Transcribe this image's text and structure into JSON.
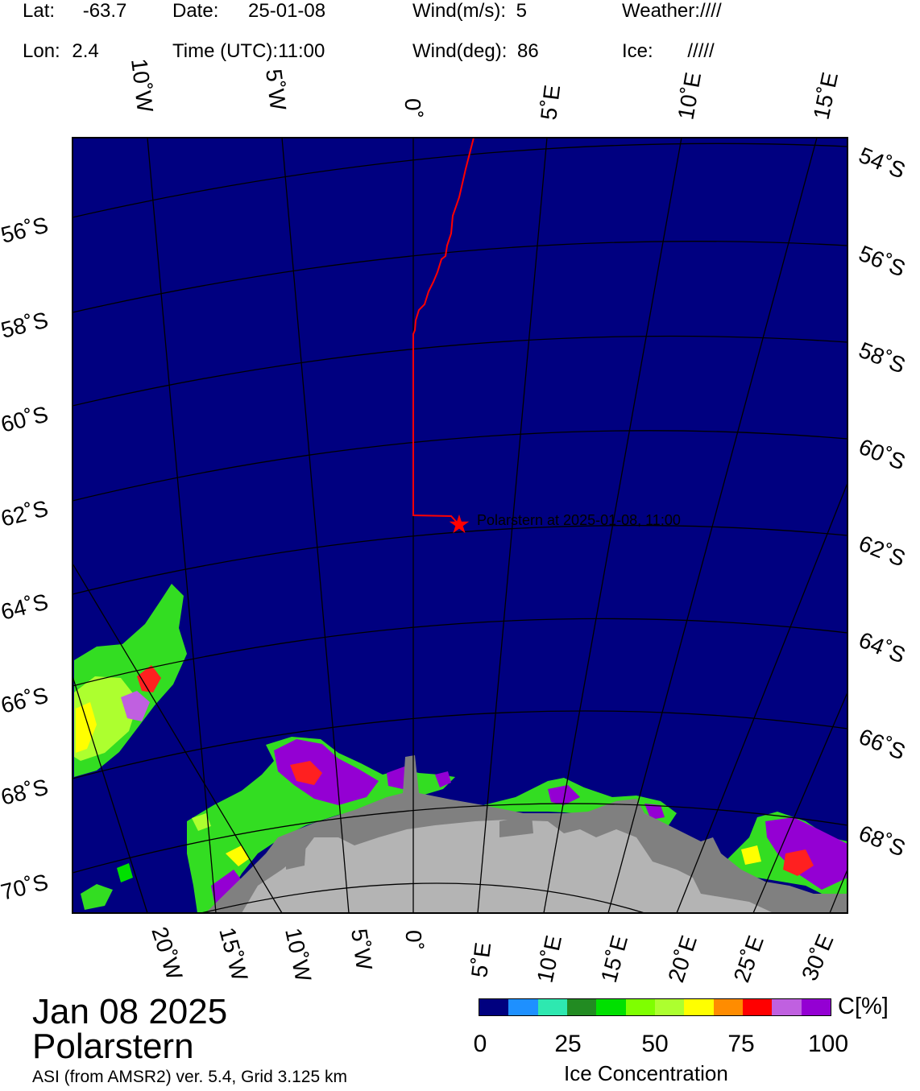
{
  "header": {
    "lat_label": "Lat:",
    "lat_value": "-63.7",
    "lon_label": "Lon:",
    "lon_value": "2.4",
    "date_label": "Date:",
    "date_value": "25-01-08",
    "time_label": "Time (UTC):",
    "time_value": "11:00",
    "wind_speed_label": "Wind(m/s):",
    "wind_speed_value": "5",
    "wind_dir_label": "Wind(deg):",
    "wind_dir_value": "86",
    "weather_label": "Weather:",
    "weather_value": "////",
    "ice_label": "Ice:",
    "ice_value": "/////"
  },
  "map": {
    "top_lon_labels": [
      "10˚W",
      "5˚W",
      "0˚",
      "5˚E",
      "10˚E",
      "15˚E"
    ],
    "bottom_lon_labels": [
      "20˚W",
      "15˚W",
      "10˚W",
      "5˚W",
      "0˚",
      "5˚E",
      "10˚E",
      "15˚E",
      "20˚E",
      "25˚E",
      "30˚E"
    ],
    "left_lat_labels": [
      "56˚S",
      "58˚S",
      "60˚S",
      "62˚S",
      "64˚S",
      "66˚S",
      "68˚S",
      "70˚S"
    ],
    "right_lat_labels": [
      "54˚S",
      "56˚S",
      "58˚S",
      "60˚S",
      "62˚S",
      "64˚S",
      "66˚S",
      "68˚S"
    ],
    "ship_label": "Polarstern at 2025-01-08, 11:00",
    "colors": {
      "open_water": "#000080",
      "track": "#ff0000",
      "land_ice": "#808080",
      "land": "#b4b4b4",
      "grid": "#000000"
    }
  },
  "footer": {
    "date_title": "Jan 08 2025",
    "vessel": "Polarstern",
    "source": "ASI (from AMSR2) ver. 5.4,  Grid 3.125 km"
  },
  "colorbar": {
    "unit": "C[%]",
    "title": "Ice Concentration",
    "ticks": [
      "0",
      "25",
      "50",
      "75",
      "100"
    ],
    "colors": [
      "#00007f",
      "#1e90ff",
      "#2ee8b0",
      "#228b22",
      "#00e000",
      "#7fff00",
      "#adff2f",
      "#ffff00",
      "#ff8c00",
      "#ff0000",
      "#c060e0",
      "#9400d3"
    ]
  }
}
